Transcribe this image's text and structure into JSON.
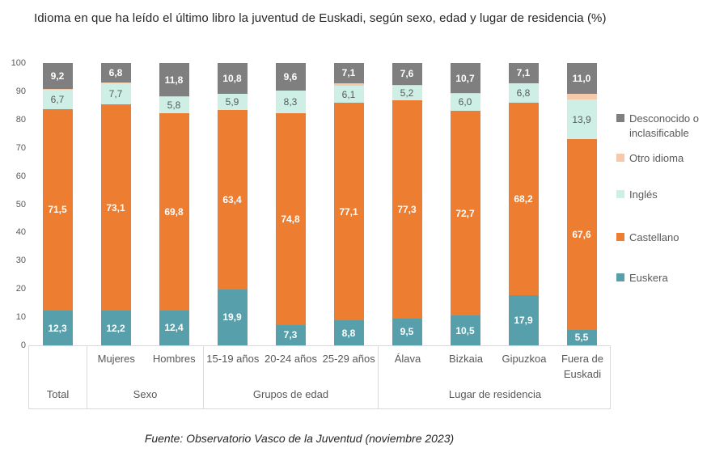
{
  "title": "Idioma en que ha leído el último libro la juventud de Euskadi, según sexo, edad y lugar de residencia (%)",
  "source": "Fuente: Observatorio Vasco de la Juventud (noviembre 2023)",
  "chart_data": {
    "type": "bar",
    "subtype": "stacked-vertical",
    "title": "Idioma en que ha leído el último libro la juventud de Euskadi, según sexo, edad y lugar de residencia (%)",
    "ylim": [
      0,
      100
    ],
    "yticks": [
      0,
      10,
      20,
      30,
      40,
      50,
      60,
      70,
      80,
      90,
      100
    ],
    "grid": false,
    "legend_position": "right",
    "groups": [
      {
        "label": "Total",
        "categories": [
          ""
        ]
      },
      {
        "label": "Sexo",
        "categories": [
          "Mujeres",
          "Hombres"
        ]
      },
      {
        "label": "Grupos de edad",
        "categories": [
          "15-19 años",
          "20-24 años",
          "25-29 años"
        ]
      },
      {
        "label": "Lugar de residencia",
        "categories": [
          "Álava",
          "Bizkaia",
          "Gipuzkoa",
          "Fuera de Euskadi"
        ]
      }
    ],
    "series": [
      {
        "name": "Euskera",
        "color": "#579FAA",
        "label_color": "#FFFFFF",
        "label_bold": true,
        "values": [
          12.3,
          12.2,
          12.4,
          19.9,
          7.3,
          8.8,
          9.5,
          10.5,
          17.9,
          5.5
        ],
        "labels": [
          "12,3",
          "12,2",
          "12,4",
          "19,9",
          "7,3",
          "8,8",
          "9,5",
          "10,5",
          "17,9",
          "5,5"
        ]
      },
      {
        "name": "Castellano",
        "color": "#ED7D31",
        "label_color": "#FFFFFF",
        "label_bold": true,
        "values": [
          71.5,
          73.1,
          69.8,
          63.4,
          74.8,
          77.1,
          77.3,
          72.7,
          68.2,
          67.6
        ],
        "labels": [
          "71,5",
          "73,1",
          "69,8",
          "63,4",
          "74,8",
          "77,1",
          "77,3",
          "72,7",
          "68,2",
          "67,6"
        ]
      },
      {
        "name": "Inglés",
        "color": "#CDEFE6",
        "label_color": "#595959",
        "label_bold": false,
        "values": [
          6.7,
          7.7,
          5.8,
          5.9,
          8.3,
          6.1,
          5.2,
          6.0,
          6.8,
          13.9
        ],
        "labels": [
          "6,7",
          "7,7",
          "5,8",
          "5,9",
          "8,3",
          "6,1",
          "5,2",
          "6,0",
          "6,8",
          "13,9"
        ]
      },
      {
        "name": "Otro idioma",
        "color": "#F5C9A9",
        "label_color": "#595959",
        "label_bold": false,
        "values": [
          0.3,
          0.2,
          0.2,
          0.0,
          0.0,
          0.9,
          0.4,
          0.1,
          0.0,
          2.0
        ],
        "labels": [
          "",
          "",
          "",
          "",
          "",
          "",
          "",
          "",
          "",
          ""
        ]
      },
      {
        "name": "Desconocido o inclasificable",
        "color": "#7F7F7F",
        "label_color": "#FFFFFF",
        "label_bold": true,
        "values": [
          9.2,
          6.8,
          11.8,
          10.8,
          9.6,
          7.1,
          7.6,
          10.7,
          7.1,
          11.0
        ],
        "labels": [
          "9,2",
          "6,8",
          "11,8",
          "10,8",
          "9,6",
          "7,1",
          "7,6",
          "10,7",
          "7,1",
          "11,0"
        ]
      }
    ],
    "legend": [
      "Desconocido o inclasificable",
      "Otro idioma",
      "Inglés",
      "Castellano",
      "Euskera"
    ]
  }
}
